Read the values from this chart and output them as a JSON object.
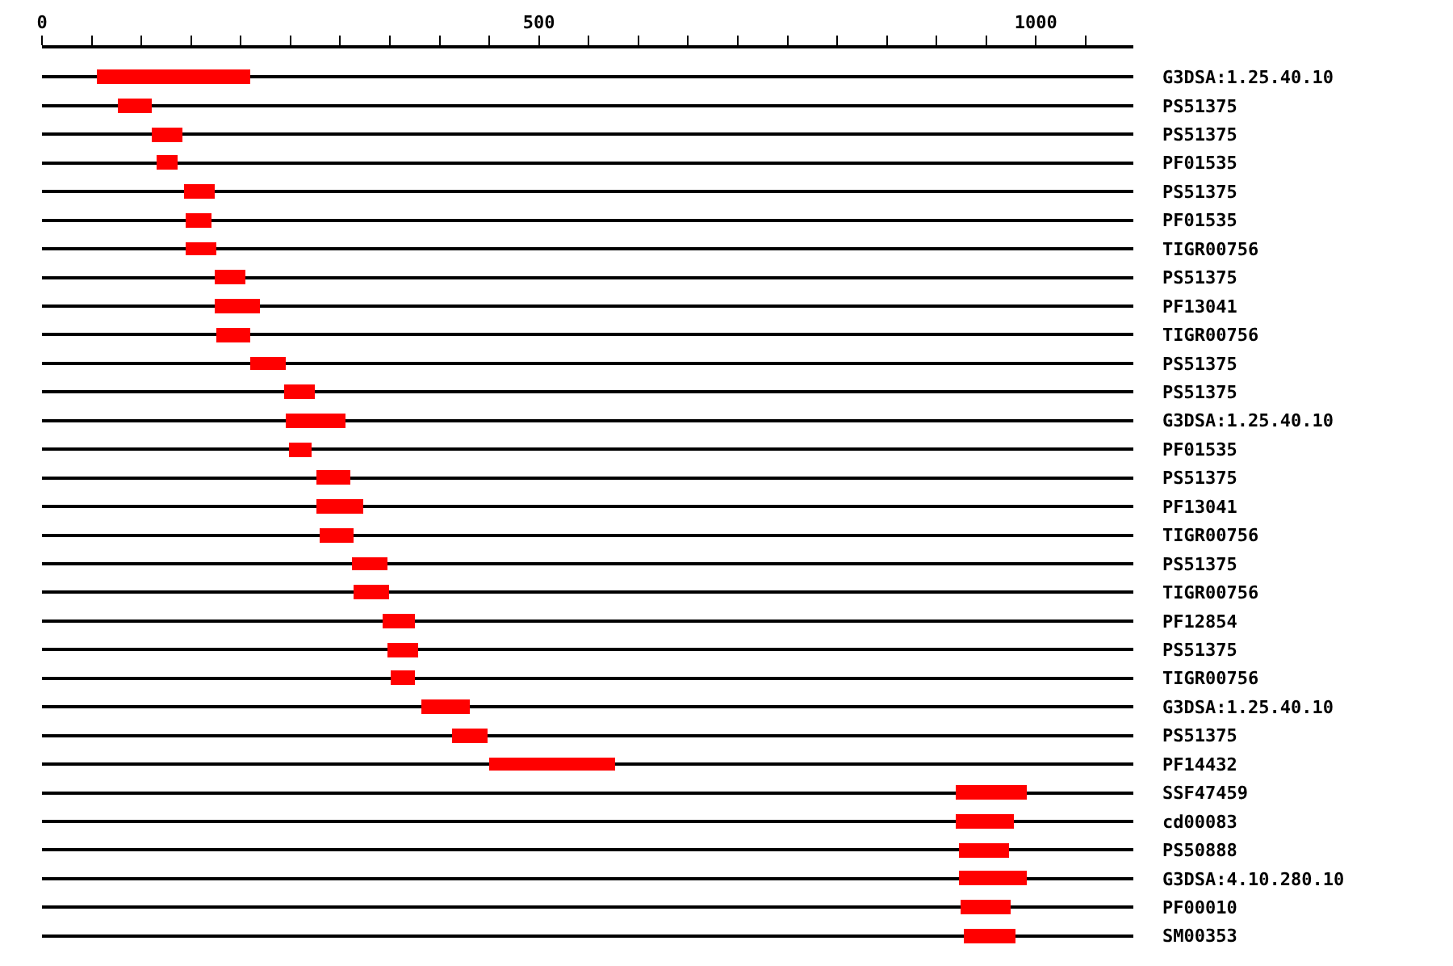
{
  "chart_data": {
    "type": "bar",
    "orientation": "horizontal",
    "grid": "y",
    "color": "#ff0000",
    "categories": [
      "G3DSA:1.25.40.10",
      "PS51375",
      "PS51375",
      "PF01535",
      "PS51375",
      "PF01535",
      "TIGR00756",
      "PS51375",
      "PF13041",
      "TIGR00756",
      "PS51375",
      "PS51375",
      "G3DSA:1.25.40.10",
      "PF01535",
      "PS51375",
      "PF13041",
      "TIGR00756",
      "PS51375",
      "TIGR00756",
      "PF12854",
      "PS51375",
      "TIGR00756",
      "G3DSA:1.25.40.10",
      "PS51375",
      "PF14432",
      "SSF47459",
      "cd00083",
      "PS50888",
      "G3DSA:4.10.280.10",
      "PF00010",
      "SM00353"
    ],
    "base": [
      56,
      76,
      110,
      115,
      143,
      144,
      144,
      173,
      173,
      175,
      209,
      243,
      245,
      248,
      276,
      276,
      279,
      312,
      313,
      343,
      348,
      351,
      382,
      413,
      450,
      920,
      920,
      922,
      923,
      925,
      928
    ],
    "values": [
      154,
      35,
      32,
      22,
      30,
      27,
      31,
      31,
      47,
      35,
      36,
      32,
      60,
      23,
      35,
      48,
      34,
      35,
      36,
      32,
      30,
      24,
      48,
      35,
      126,
      71,
      58,
      51,
      68,
      50,
      52
    ],
    "xlim": [
      0,
      1098
    ],
    "xticks": [
      0,
      {
        "value": 50,
        "label": null
      },
      {
        "value": 100,
        "label": null
      },
      {
        "value": 150,
        "label": null
      },
      {
        "value": 200,
        "label": null
      },
      {
        "value": 250,
        "label": null
      },
      {
        "value": 300,
        "label": null
      },
      {
        "value": 350,
        "label": null
      },
      {
        "value": 400,
        "label": null
      },
      {
        "value": 450,
        "label": null
      },
      500,
      {
        "value": 550,
        "label": null
      },
      {
        "value": 600,
        "label": null
      },
      {
        "value": 650,
        "label": null
      },
      {
        "value": 700,
        "label": null
      },
      {
        "value": 750,
        "label": null
      },
      {
        "value": 800,
        "label": null
      },
      {
        "value": 850,
        "label": null
      },
      {
        "value": 900,
        "label": null
      },
      {
        "value": 950,
        "label": null
      },
      1000,
      {
        "value": 1050,
        "label": null
      }
    ]
  }
}
